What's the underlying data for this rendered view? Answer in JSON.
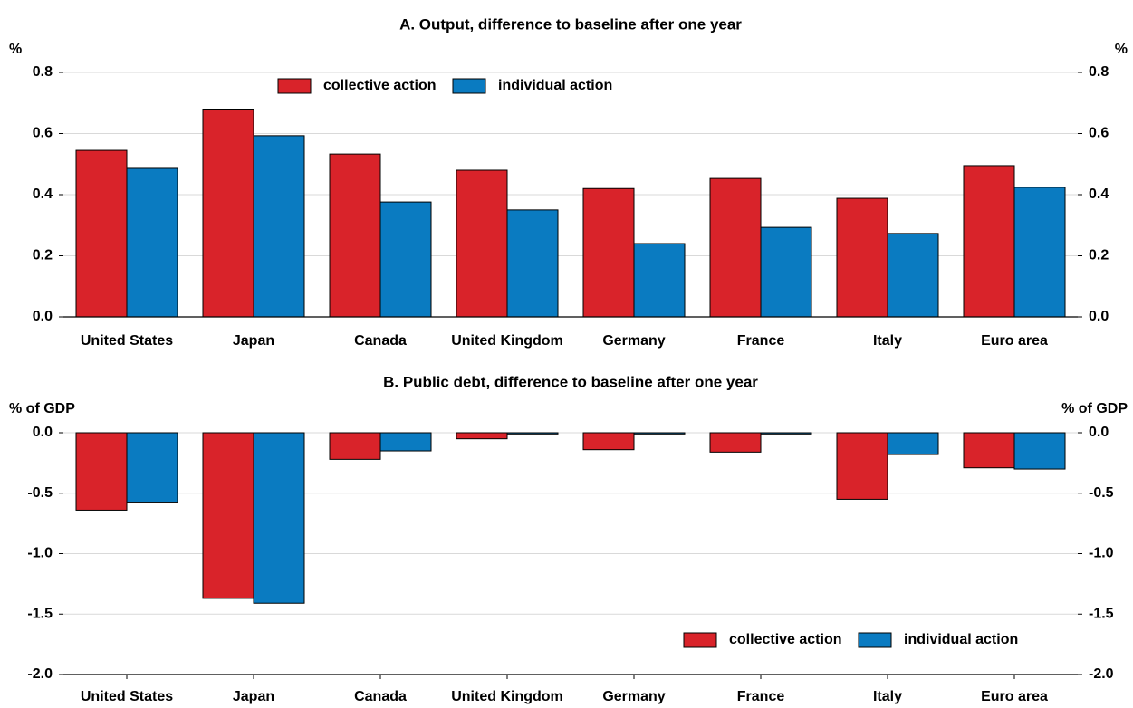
{
  "chart_data": [
    {
      "type": "bar",
      "title": "A. Output, difference to baseline after one year",
      "y_label": "%",
      "categories": [
        "United States",
        "Japan",
        "Canada",
        "United Kingdom",
        "Germany",
        "France",
        "Italy",
        "Euro area"
      ],
      "series": [
        {
          "name": "collective action",
          "color": "#d9232a",
          "values": [
            0.545,
            0.68,
            0.533,
            0.48,
            0.42,
            0.453,
            0.388,
            0.495
          ]
        },
        {
          "name": "individual action",
          "color": "#0a7bc1",
          "values": [
            0.486,
            0.593,
            0.376,
            0.35,
            0.24,
            0.293,
            0.273,
            0.424
          ]
        }
      ],
      "ylim": [
        0,
        0.8
      ],
      "yticks": [
        {
          "value": 0,
          "label": "0.0"
        },
        0.2,
        0.4,
        0.6,
        0.8
      ],
      "grid": true,
      "legend": "top-center"
    },
    {
      "type": "bar",
      "title": "B. Public debt, difference to baseline after one year",
      "y_label": "% of GDP",
      "categories": [
        "United States",
        "Japan",
        "Canada",
        "United Kingdom",
        "Germany",
        "France",
        "Italy",
        "Euro area"
      ],
      "series": [
        {
          "name": "collective action",
          "color": "#d9232a",
          "values": [
            -0.64,
            -1.37,
            -0.22,
            -0.05,
            -0.14,
            -0.16,
            -0.55,
            -0.29
          ]
        },
        {
          "name": "individual action",
          "color": "#0a7bc1",
          "values": [
            -0.58,
            -1.41,
            -0.15,
            -0.01,
            -0.01,
            -0.01,
            -0.18,
            -0.3
          ]
        }
      ],
      "ylim": [
        -2,
        0
      ],
      "yticks": [
        {
          "value": -2,
          "label": "-2.0"
        },
        -1.5,
        {
          "value": -1,
          "label": "-1.0"
        },
        -0.5,
        {
          "value": 0,
          "label": "0.0"
        }
      ],
      "grid": true,
      "legend": "bottom-right"
    }
  ]
}
